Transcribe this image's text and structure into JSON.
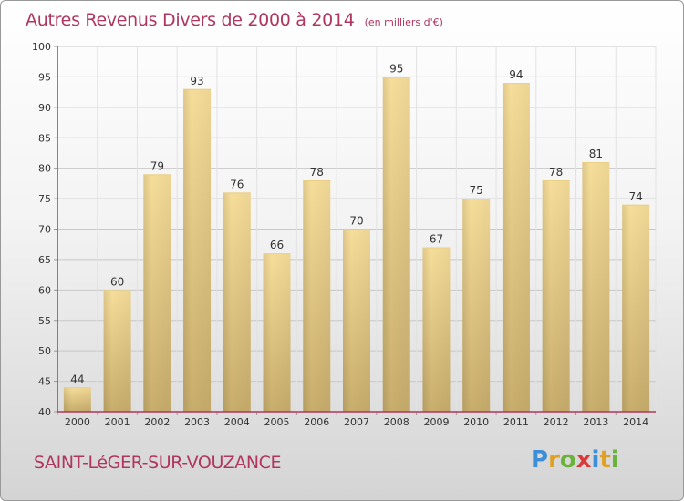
{
  "title": "Autres Revenus Divers de 2000 à 2014",
  "unit": "(en milliers d'€)",
  "city": "SAINT-LéGER-SUR-VOUZANCE",
  "logo": "Proxiti",
  "colors": {
    "title": "#b0365e",
    "bar_top": "#f6dd9a",
    "bar_bottom": "#c8ad6c",
    "axis": "#b0365e"
  },
  "chart_data": {
    "type": "bar",
    "categories": [
      "2000",
      "2001",
      "2002",
      "2003",
      "2004",
      "2005",
      "2006",
      "2007",
      "2008",
      "2009",
      "2010",
      "2011",
      "2012",
      "2013",
      "2014"
    ],
    "values": [
      44,
      60,
      79,
      93,
      76,
      66,
      78,
      70,
      95,
      67,
      75,
      94,
      78,
      81,
      74
    ],
    "yticks": [
      40,
      45,
      50,
      55,
      60,
      65,
      70,
      75,
      80,
      85,
      90,
      95,
      100
    ],
    "ylim": [
      40,
      100
    ],
    "grid": true
  }
}
